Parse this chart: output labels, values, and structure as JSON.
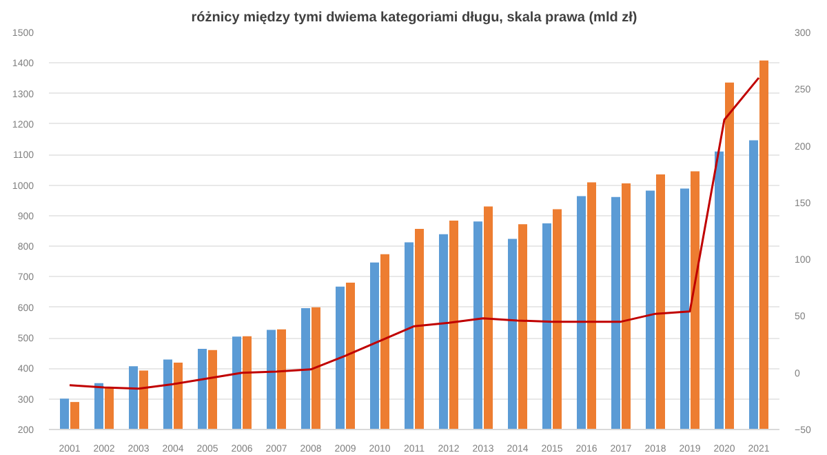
{
  "chart_data": {
    "type": "bar",
    "title": "różnicy między tymi dwiema kategoriami długu, skala prawa (mld zł)",
    "categories": [
      "2001",
      "2002",
      "2003",
      "2004",
      "2005",
      "2006",
      "2007",
      "2008",
      "2009",
      "2010",
      "2011",
      "2012",
      "2013",
      "2014",
      "2015",
      "2016",
      "2017",
      "2018",
      "2019",
      "2020",
      "2021"
    ],
    "series": [
      {
        "color": "#5b9bd5",
        "values": [
          301,
          352,
          407,
          429,
          464,
          504,
          526,
          597,
          668,
          747,
          813,
          839,
          881,
          824,
          875,
          964,
          961,
          982,
          989,
          1110,
          1147
        ]
      },
      {
        "color": "#ed7d31",
        "values": [
          290,
          338,
          393,
          419,
          460,
          505,
          528,
          600,
          681,
          774,
          857,
          884,
          930,
          872,
          921,
          1009,
          1006,
          1035,
          1045,
          1336,
          1408
        ]
      },
      {
        "type": "line",
        "axis": "y2",
        "color": "#c00000",
        "values": [
          -11,
          -13,
          -14,
          -10,
          -5,
          0,
          1,
          3,
          15,
          28,
          41,
          44,
          48,
          46,
          45,
          45,
          45,
          52,
          54,
          223,
          260
        ]
      }
    ],
    "ylim": [
      200,
      1500
    ],
    "yticks": [
      200,
      300,
      400,
      500,
      600,
      700,
      800,
      900,
      1000,
      1100,
      1200,
      1300,
      1400,
      1500
    ],
    "y2lim": [
      -50,
      300
    ],
    "y2ticks": [
      -50,
      0,
      50,
      100,
      150,
      200,
      250,
      300
    ],
    "grid": "y",
    "marker": "none",
    "line_style": "solid"
  }
}
